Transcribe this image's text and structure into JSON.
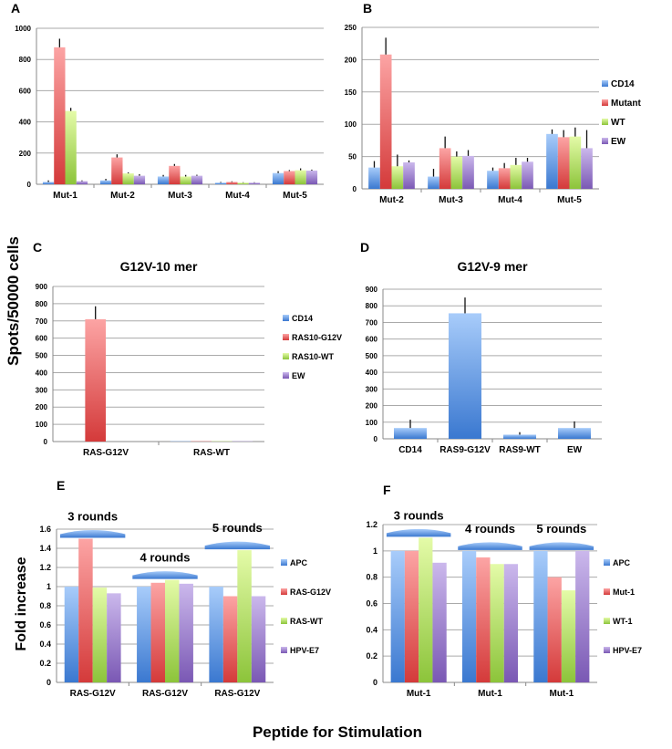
{
  "figure": {
    "ylabel_top": "Spots/50000 cells",
    "ylabel_bottom": "Fold increase",
    "xlabel_bottom": "Peptide for Stimulation"
  },
  "colors": {
    "blue": "#4a86d8",
    "red": "#de4848",
    "green": "#9ed24a",
    "purple": "#8a6cc0"
  },
  "chart_data": [
    {
      "panel": "A",
      "type": "bar",
      "title": "",
      "ylim": [
        0,
        1000
      ],
      "yticks": [
        0,
        200,
        400,
        600,
        800,
        1000
      ],
      "categories": [
        "Mut-1",
        "Mut-2",
        "Mut-3",
        "Mut-4",
        "Mut-5"
      ],
      "series": [
        {
          "name": "CD14",
          "values": [
            15,
            25,
            50,
            10,
            72
          ],
          "err": [
            10,
            10,
            10,
            5,
            12
          ]
        },
        {
          "name": "Mutant",
          "values": [
            878,
            172,
            118,
            15,
            85
          ],
          "err": [
            55,
            20,
            12,
            4,
            6
          ]
        },
        {
          "name": "WT",
          "values": [
            470,
            70,
            50,
            10,
            90
          ],
          "err": [
            20,
            6,
            10,
            3,
            12
          ]
        },
        {
          "name": "EW",
          "values": [
            20,
            55,
            55,
            10,
            88
          ],
          "err": [
            5,
            10,
            6,
            3,
            6
          ]
        }
      ],
      "legend": "none",
      "grid": true
    },
    {
      "panel": "B",
      "type": "bar",
      "title": "",
      "ylim": [
        0,
        250
      ],
      "yticks": [
        0,
        50,
        100,
        150,
        200,
        250
      ],
      "categories": [
        "Mut-2",
        "Mut-3",
        "Mut-4",
        "Mut-5"
      ],
      "series": [
        {
          "name": "CD14",
          "values": [
            33,
            19,
            28,
            85
          ],
          "err": [
            10,
            12,
            5,
            7
          ]
        },
        {
          "name": "Mutant",
          "values": [
            208,
            63,
            32,
            80
          ],
          "err": [
            26,
            18,
            8,
            11
          ]
        },
        {
          "name": "WT",
          "values": [
            35,
            50,
            37,
            81
          ],
          "err": [
            18,
            8,
            11,
            14
          ]
        },
        {
          "name": "EW",
          "values": [
            41,
            51,
            42,
            63
          ],
          "err": [
            3,
            9,
            6,
            28
          ]
        }
      ],
      "legend": "right",
      "grid": true
    },
    {
      "panel": "C",
      "type": "bar",
      "title": "G12V-10 mer",
      "ylim": [
        0,
        900
      ],
      "yticks": [
        0,
        100,
        200,
        300,
        400,
        500,
        600,
        700,
        800,
        900
      ],
      "categories": [
        "RAS-G12V",
        "RAS-WT"
      ],
      "series": [
        {
          "name": "CD14",
          "values": [
            0,
            2
          ],
          "err": [
            0,
            0
          ]
        },
        {
          "name": "RAS10-G12V",
          "values": [
            710,
            2
          ],
          "err": [
            75,
            0
          ]
        },
        {
          "name": "RAS10-WT",
          "values": [
            0,
            2
          ],
          "err": [
            0,
            0
          ]
        },
        {
          "name": "EW",
          "values": [
            0,
            2
          ],
          "err": [
            0,
            0
          ]
        }
      ],
      "legend": "right",
      "grid": true
    },
    {
      "panel": "D",
      "type": "bar",
      "title": "G12V-9 mer",
      "ylim": [
        0,
        900
      ],
      "yticks": [
        0,
        100,
        200,
        300,
        400,
        500,
        600,
        700,
        800,
        900
      ],
      "categories": [
        "CD14",
        "RAS9-G12V",
        "RAS9-WT",
        "EW"
      ],
      "series": [
        {
          "name": "",
          "values": [
            65,
            755,
            25,
            65
          ],
          "err": [
            50,
            95,
            15,
            40
          ]
        }
      ],
      "legend": "none",
      "grid": true
    },
    {
      "panel": "E",
      "type": "bar",
      "title": "",
      "ylim": [
        0,
        1.6
      ],
      "yticks": [
        0,
        0.2,
        0.4,
        0.6,
        0.8,
        1,
        1.2,
        1.4,
        1.6
      ],
      "categories": [
        "RAS-G12V",
        "RAS-G12V",
        "RAS-G12V"
      ],
      "group_annotations": [
        "3 rounds",
        "4 rounds",
        "5 rounds"
      ],
      "series": [
        {
          "name": "APC",
          "values": [
            1,
            1,
            1
          ]
        },
        {
          "name": "RAS-G12V",
          "values": [
            1.5,
            1.04,
            0.9
          ]
        },
        {
          "name": "RAS-WT",
          "values": [
            0.99,
            1.07,
            1.38
          ]
        },
        {
          "name": "HPV-E7",
          "values": [
            0.93,
            1.03,
            0.9
          ]
        }
      ],
      "legend": "right",
      "grid": true
    },
    {
      "panel": "F",
      "type": "bar",
      "title": "",
      "ylim": [
        0,
        1.2
      ],
      "yticks": [
        0,
        0.2,
        0.4,
        0.6,
        0.8,
        1,
        1.2
      ],
      "categories": [
        "Mut-1",
        "Mut-1",
        "Mut-1"
      ],
      "group_annotations": [
        "3 rounds",
        "4 rounds",
        "5 rounds"
      ],
      "series": [
        {
          "name": "APC",
          "values": [
            1,
            1,
            1
          ]
        },
        {
          "name": "Mut-1",
          "values": [
            1,
            0.95,
            0.8
          ]
        },
        {
          "name": "WT-1",
          "values": [
            1.1,
            0.9,
            0.7
          ]
        },
        {
          "name": "HPV-E7",
          "values": [
            0.91,
            0.9,
            1.0
          ]
        }
      ],
      "legend": "right",
      "grid": true
    }
  ]
}
